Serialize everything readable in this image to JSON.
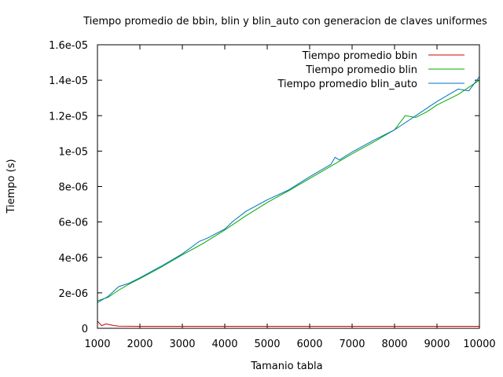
{
  "chart_data": {
    "type": "line",
    "title": "Tiempo promedio de bbin, blin y blin_auto con generacion de claves uniformes",
    "xlabel": "Tamanio tabla",
    "ylabel": "Tiempo (s)",
    "xlim": [
      1000,
      10000
    ],
    "ylim": [
      0,
      1.6e-05
    ],
    "x_ticks": [
      1000,
      2000,
      3000,
      4000,
      5000,
      6000,
      7000,
      8000,
      9000,
      10000
    ],
    "x_tick_labels": [
      "1000",
      "2000",
      "3000",
      "4000",
      "5000",
      "6000",
      "7000",
      "8000",
      "9000",
      "10000"
    ],
    "y_ticks": [
      0,
      2e-06,
      4e-06,
      6e-06,
      8e-06,
      1e-05,
      1.2e-05,
      1.4e-05,
      1.6e-05
    ],
    "y_tick_labels": [
      "0",
      "2e-06",
      "4e-06",
      "6e-06",
      "8e-06",
      "1e-05",
      "1.2e-05",
      "1.4e-05",
      "1.6e-05"
    ],
    "grid": false,
    "legend_position": "top-right",
    "series": [
      {
        "name": "Tiempo promedio bbin",
        "color": "#cc0000",
        "x": [
          1000,
          1100,
          1200,
          1300,
          1400,
          1500,
          2000,
          3000,
          4000,
          5000,
          6000,
          7000,
          8000,
          9000,
          10000
        ],
        "y": [
          4e-07,
          1.5e-07,
          2.5e-07,
          2e-07,
          1.5e-07,
          1.2e-07,
          1.1e-07,
          1.1e-07,
          1.1e-07,
          1.1e-07,
          1.1e-07,
          1.1e-07,
          1.1e-07,
          1.1e-07,
          1.1e-07
        ]
      },
      {
        "name": "Tiempo promedio blin",
        "color": "#00aa00",
        "x": [
          1000,
          1250,
          1500,
          1750,
          2000,
          2500,
          3000,
          3500,
          4000,
          4500,
          5000,
          5500,
          6000,
          6500,
          7000,
          7500,
          8000,
          8250,
          8500,
          8750,
          9000,
          9500,
          10000
        ],
        "y": [
          1.55e-06,
          1.75e-06,
          2.15e-06,
          2.5e-06,
          2.8e-06,
          3.45e-06,
          4.15e-06,
          4.8e-06,
          5.55e-06,
          6.35e-06,
          7.1e-06,
          7.75e-06,
          8.45e-06,
          9.15e-06,
          9.85e-06,
          1.05e-05,
          1.12e-05,
          1.2e-05,
          1.19e-05,
          1.22e-05,
          1.26e-05,
          1.32e-05,
          1.4e-05
        ]
      },
      {
        "name": "Tiempo promedio blin_auto",
        "color": "#0070c0",
        "x": [
          1000,
          1250,
          1500,
          1750,
          2000,
          2500,
          3000,
          3400,
          3600,
          4000,
          4200,
          4500,
          5000,
          5500,
          6000,
          6500,
          6600,
          6700,
          7000,
          7500,
          8000,
          8500,
          9000,
          9500,
          9750,
          10000
        ],
        "y": [
          1.45e-06,
          1.8e-06,
          2.35e-06,
          2.55e-06,
          2.85e-06,
          3.5e-06,
          4.2e-06,
          4.9e-06,
          5.1e-06,
          5.6e-06,
          6.05e-06,
          6.6e-06,
          7.25e-06,
          7.8e-06,
          8.55e-06,
          9.25e-06,
          9.65e-06,
          9.5e-06,
          9.95e-06,
          1.06e-05,
          1.12e-05,
          1.2e-05,
          1.28e-05,
          1.35e-05,
          1.34e-05,
          1.42e-05
        ]
      }
    ]
  }
}
